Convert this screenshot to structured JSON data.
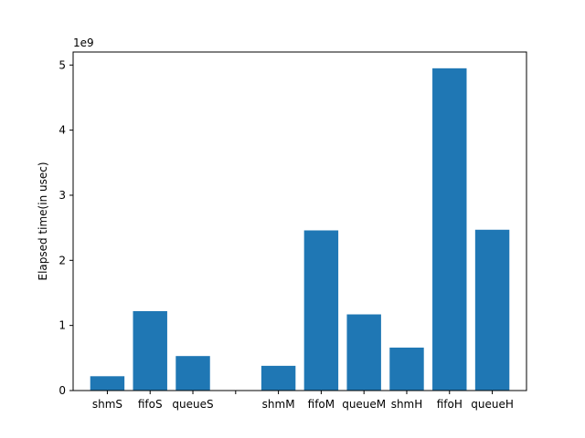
{
  "chart_data": {
    "type": "bar",
    "title": "",
    "xlabel": "",
    "ylabel": "Elapsed time(in usec)",
    "y_multiplier_label": "1e9",
    "categories": [
      "shmS",
      "fifoS",
      "queueS",
      "",
      "shmM",
      "fifoM",
      "queueM",
      "shmH",
      "fifoH",
      "queueH"
    ],
    "values": [
      0.22,
      1.22,
      0.53,
      0,
      0.38,
      2.46,
      1.17,
      0.66,
      4.95,
      2.47
    ],
    "ylim": [
      0,
      5.2
    ],
    "yticks": [
      0,
      1,
      2,
      3,
      4,
      5
    ],
    "ytick_labels": [
      "0",
      "1",
      "2",
      "3",
      "4",
      "5"
    ],
    "grid": false,
    "bar_color": "#1f77b4"
  }
}
